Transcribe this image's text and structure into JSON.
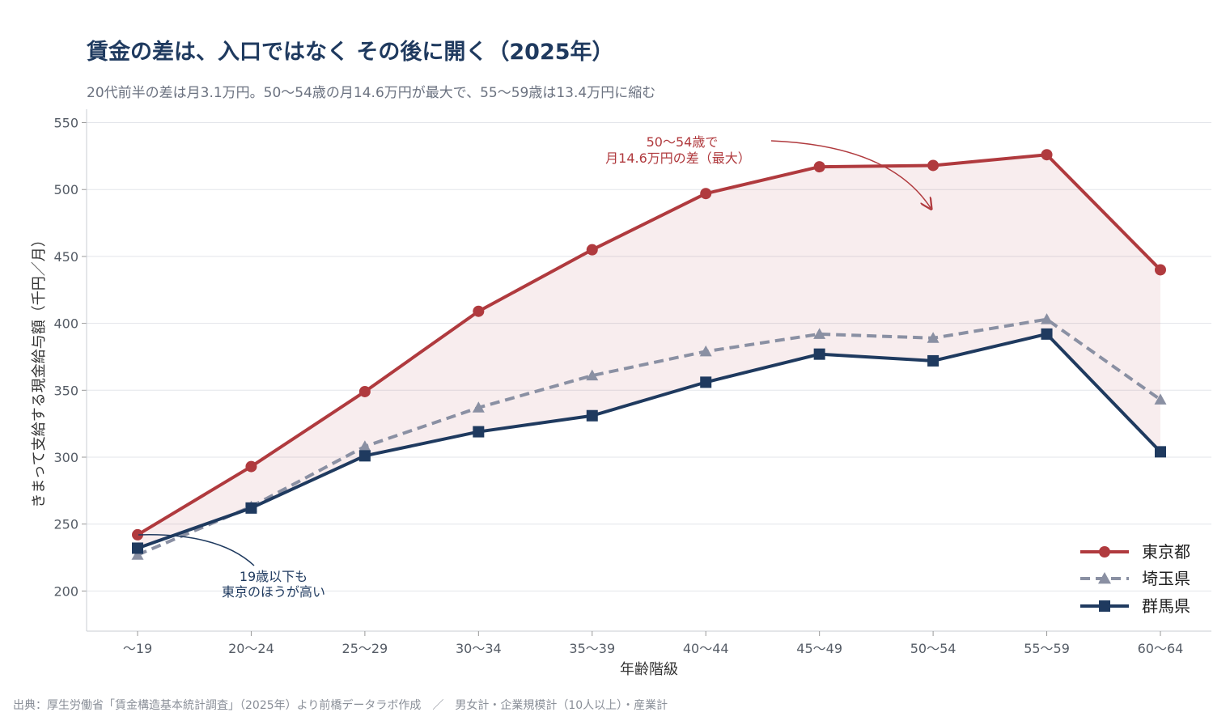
{
  "header": {
    "title": "賃金の差は、入口ではなく その後に開く（2025年）",
    "subtitle": "20代前半の差は月3.1万円。50〜54歳の月14.6万円が最大で、55〜59歳は13.4万円に縮む"
  },
  "footer": {
    "source": "出典：厚生労働省「賃金構造基本統計調査」（2025年）より前橋データラボ作成　／　男女計・企業規模計（10人以上）・産業計"
  },
  "chart_data": {
    "type": "line",
    "categories": [
      "〜19",
      "20〜24",
      "25〜29",
      "30〜34",
      "35〜39",
      "40〜44",
      "45〜49",
      "50〜54",
      "55〜59",
      "60〜64"
    ],
    "xlabel": "年齢階級",
    "ylabel": "きまって支給する現金給与額（千円／月）",
    "ylim": [
      170,
      560
    ],
    "yticks": [
      200,
      250,
      300,
      350,
      400,
      450,
      500,
      550
    ],
    "grid": true,
    "legend_position": "bottom-right",
    "series": [
      {
        "name": "東京都",
        "color": "#b03a3e",
        "marker": "circle",
        "dash": "solid",
        "values": [
          242,
          293,
          349,
          409,
          455,
          497,
          517,
          518,
          526,
          440
        ]
      },
      {
        "name": "埼玉県",
        "color": "#8a90a3",
        "marker": "triangle",
        "dash": "dashed",
        "values": [
          227,
          263,
          308,
          337,
          361,
          379,
          392,
          389,
          403,
          343
        ]
      },
      {
        "name": "群馬県",
        "color": "#1f3a5f",
        "marker": "square",
        "dash": "solid",
        "values": [
          232,
          262,
          301,
          319,
          331,
          356,
          377,
          372,
          392,
          304
        ]
      }
    ],
    "shaded_band": {
      "between": [
        "東京都",
        "群馬県"
      ],
      "color": "#b03a3e"
    },
    "annotations": [
      {
        "lines": [
          "50〜54歳で",
          "月14.6万円の差（最大）"
        ],
        "color": "#b03a3e"
      },
      {
        "lines": [
          "19歳以下も",
          "東京のほうが高い"
        ],
        "color": "#1f3a5f"
      }
    ]
  }
}
